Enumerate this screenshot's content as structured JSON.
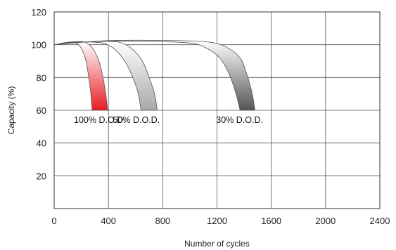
{
  "chart_data": {
    "type": "area",
    "xlabel": "Number of cycles",
    "ylabel": "Capacity (%)",
    "xlim": [
      0,
      2400
    ],
    "ylim": [
      0,
      120
    ],
    "xticks": [
      0,
      400,
      800,
      1200,
      1600,
      2000,
      2400
    ],
    "yticks": [
      20,
      40,
      60,
      80,
      100,
      120
    ],
    "grid": true,
    "colors": {
      "100% D.O.D.": "#e51c23",
      "50% D.O.D.": "#a8a8a8",
      "30% D.O.D.": "#555555"
    },
    "series": [
      {
        "name": "100% D.O.D.",
        "upper": {
          "x": [
            0,
            100,
            200,
            250,
            290,
            330,
            360,
            380,
            395
          ],
          "y": [
            100,
            101.5,
            102,
            100.5,
            97,
            90,
            80,
            70,
            60
          ]
        },
        "lower": {
          "x": [
            0,
            80,
            140,
            180,
            210,
            235,
            255,
            270,
            280
          ],
          "y": [
            100,
            101,
            101.5,
            100,
            96,
            90,
            80,
            70,
            60
          ]
        }
      },
      {
        "name": "50% D.O.D.",
        "upper": {
          "x": [
            0,
            200,
            400,
            500,
            580,
            650,
            700,
            740,
            760
          ],
          "y": [
            100,
            101.5,
            102,
            101,
            97,
            90,
            80,
            70,
            60
          ]
        },
        "lower": {
          "x": [
            0,
            150,
            300,
            380,
            450,
            520,
            580,
            620,
            640
          ],
          "y": [
            100,
            101.5,
            101.5,
            100.5,
            97,
            90,
            80,
            70,
            60
          ]
        }
      },
      {
        "name": "30% D.O.D.",
        "upper": {
          "x": [
            0,
            400,
            900,
            1150,
            1280,
            1370,
            1420,
            1460,
            1480
          ],
          "y": [
            100,
            102.5,
            102.5,
            101.5,
            98,
            92,
            82,
            70,
            60
          ]
        },
        "lower": {
          "x": [
            0,
            300,
            700,
            1000,
            1120,
            1220,
            1290,
            1340,
            1370
          ],
          "y": [
            100,
            102,
            102,
            101,
            98,
            92,
            82,
            70,
            60
          ]
        }
      }
    ]
  }
}
